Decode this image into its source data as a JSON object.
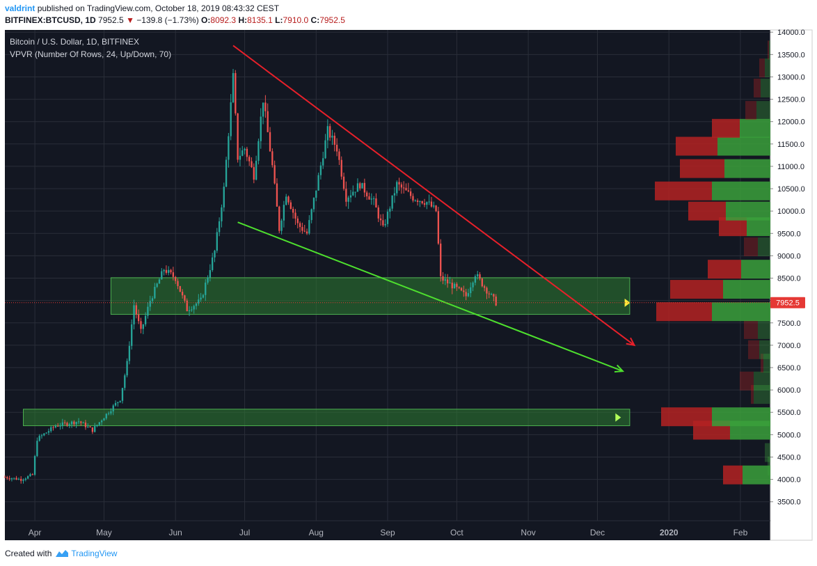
{
  "header": {
    "user": "valdrint",
    "published_text": "published on TradingView.com, October 18, 2019 08:43:32 CEST",
    "symbol": "BITFINEX:BTCUSD, 1D",
    "last": "7952.5",
    "change": "−139.8 (−1.73%)",
    "open_label": "O:",
    "open": "8092.3",
    "high_label": "H:",
    "high": "8135.1",
    "low_label": "L:",
    "low": "7910.0",
    "close_label": "C:",
    "close": "7952.5"
  },
  "legend": {
    "title": "Bitcoin / U.S. Dollar, 1D, BITFINEX",
    "indicator": "VPVR (Number Of Rows, 24, Up/Down, 70)"
  },
  "footer": {
    "prefix": "Created with",
    "brand": "TradingView"
  },
  "colors": {
    "background": "#131722",
    "grid": "#2a2e39",
    "up": "#26a69a",
    "down": "#ef5350",
    "resistance_line": "#e8202a",
    "support_line": "#4ee02e",
    "zone": "#2e7d32",
    "price_tag": "#e53935",
    "axis_text": "#b2b5be"
  },
  "chart_data": {
    "type": "candlestick",
    "title": "Bitcoin / U.S. Dollar, 1D, BITFINEX",
    "x_labels": [
      "Apr",
      "May",
      "Jun",
      "Jul",
      "Aug",
      "Sep",
      "Oct",
      "Nov",
      "Dec",
      "2020",
      "Feb"
    ],
    "y_ticks": [
      3500,
      4000,
      4500,
      5000,
      5500,
      6000,
      6500,
      7000,
      7500,
      8000,
      8500,
      9000,
      9500,
      10000,
      10500,
      11000,
      11500,
      12000,
      12500,
      13000,
      13500,
      14000
    ],
    "y_tick_labels": [
      "3500.0",
      "4000.0",
      "4500.0",
      "5000.0",
      "5500.0",
      "6000.0",
      "6500.0",
      "7000.0",
      "7500.0",
      "8000.0",
      "8500.0",
      "9000.0",
      "9500.0",
      "10000.0",
      "10500.0",
      "11000.0",
      "11500.0",
      "12000.0",
      "12500.0",
      "13000.0",
      "13500.0",
      "14000.0"
    ],
    "ylim": [
      3200,
      14050
    ],
    "current_price": 7952.5,
    "current_price_label": "7952.5",
    "price_path": [
      [
        "2019-03-19",
        4050
      ],
      [
        "2019-03-26",
        4000
      ],
      [
        "2019-03-31",
        4100
      ],
      [
        "2019-04-02",
        4900
      ],
      [
        "2019-04-10",
        5200
      ],
      [
        "2019-04-20",
        5300
      ],
      [
        "2019-04-26",
        5100
      ],
      [
        "2019-05-01",
        5400
      ],
      [
        "2019-05-08",
        5800
      ],
      [
        "2019-05-11",
        6600
      ],
      [
        "2019-05-14",
        7900
      ],
      [
        "2019-05-17",
        7300
      ],
      [
        "2019-05-21",
        8000
      ],
      [
        "2019-05-27",
        8700
      ],
      [
        "2019-06-01",
        8500
      ],
      [
        "2019-06-06",
        7800
      ],
      [
        "2019-06-12",
        8000
      ],
      [
        "2019-06-18",
        9100
      ],
      [
        "2019-06-22",
        10500
      ],
      [
        "2019-06-26",
        13000
      ],
      [
        "2019-06-28",
        11200
      ],
      [
        "2019-07-01",
        11400
      ],
      [
        "2019-07-05",
        10800
      ],
      [
        "2019-07-09",
        12500
      ],
      [
        "2019-07-13",
        11000
      ],
      [
        "2019-07-16",
        9600
      ],
      [
        "2019-07-19",
        10400
      ],
      [
        "2019-07-24",
        9700
      ],
      [
        "2019-07-28",
        9500
      ],
      [
        "2019-08-01",
        10500
      ],
      [
        "2019-08-06",
        11800
      ],
      [
        "2019-08-10",
        11400
      ],
      [
        "2019-08-14",
        10300
      ],
      [
        "2019-08-20",
        10600
      ],
      [
        "2019-08-26",
        10200
      ],
      [
        "2019-08-30",
        9600
      ],
      [
        "2019-09-05",
        10600
      ],
      [
        "2019-09-12",
        10300
      ],
      [
        "2019-09-18",
        10200
      ],
      [
        "2019-09-22",
        10000
      ],
      [
        "2019-09-24",
        8500
      ],
      [
        "2019-09-30",
        8300
      ],
      [
        "2019-10-05",
        8100
      ],
      [
        "2019-10-09",
        8600
      ],
      [
        "2019-10-13",
        8300
      ],
      [
        "2019-10-18",
        7950
      ]
    ],
    "trendlines": [
      {
        "name": "resistance",
        "from": [
          "2019-06-26",
          13700
        ],
        "to": [
          "2019-12-17",
          7000
        ],
        "color": "#e8202a"
      },
      {
        "name": "support",
        "from": [
          "2019-06-28",
          9750
        ],
        "to": [
          "2019-12-12",
          6420
        ],
        "color": "#4ee02e"
      }
    ],
    "zones": [
      {
        "name": "upper-zone",
        "from": "2019-05-04",
        "to": "2019-12-15",
        "low": 7690,
        "high": 8510
      },
      {
        "name": "lower-zone",
        "from": "2019-03-27",
        "to": "2019-12-15",
        "low": 5200,
        "high": 5570
      }
    ],
    "volume_profile": [
      {
        "price": 4100,
        "up": 0.4,
        "down": 0.28
      },
      {
        "price": 4300,
        "up": 0.04,
        "down": 0.0
      },
      {
        "price": 4600,
        "up": 0.08,
        "down": 0.0
      },
      {
        "price": 5100,
        "up": 0.58,
        "down": 0.53
      },
      {
        "price": 5400,
        "up": 0.84,
        "down": 0.73
      },
      {
        "price": 5900,
        "up": 0.24,
        "down": 0.04
      },
      {
        "price": 6200,
        "up": 0.24,
        "down": 0.2
      },
      {
        "price": 6600,
        "up": 0.1,
        "down": 0.04
      },
      {
        "price": 6900,
        "up": 0.16,
        "down": 0.16
      },
      {
        "price": 7350,
        "up": 0.18,
        "down": 0.2
      },
      {
        "price": 7750,
        "up": 0.84,
        "down": 0.8
      },
      {
        "price": 8250,
        "up": 0.68,
        "down": 0.76
      },
      {
        "price": 8700,
        "up": 0.42,
        "down": 0.48
      },
      {
        "price": 9200,
        "up": 0.18,
        "down": 0.2
      },
      {
        "price": 9650,
        "up": 0.34,
        "down": 0.4
      },
      {
        "price": 10000,
        "up": 0.64,
        "down": 0.54
      },
      {
        "price": 10450,
        "up": 0.84,
        "down": 0.82
      },
      {
        "price": 10950,
        "up": 0.66,
        "down": 0.64
      },
      {
        "price": 11450,
        "up": 0.76,
        "down": 0.6
      },
      {
        "price": 11850,
        "up": 0.44,
        "down": 0.4
      },
      {
        "price": 12250,
        "up": 0.2,
        "down": 0.16
      },
      {
        "price": 12750,
        "up": 0.14,
        "down": 0.1
      },
      {
        "price": 13200,
        "up": 0.08,
        "down": 0.08
      },
      {
        "price": 13600,
        "up": 0.02,
        "down": 0.02
      }
    ]
  }
}
